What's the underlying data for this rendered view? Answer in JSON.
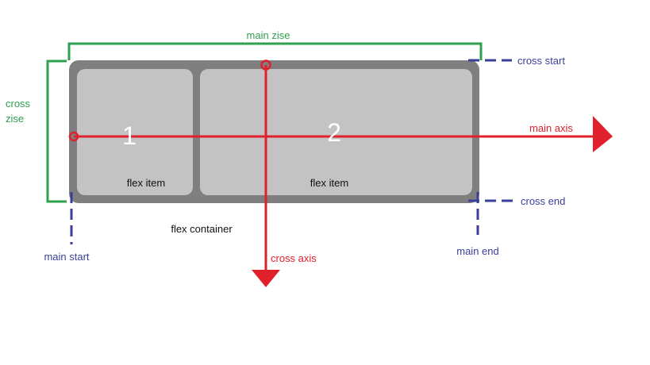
{
  "diagram": {
    "main_size_label": "main zise",
    "cross_size_label_line1": "cross",
    "cross_size_label_line2": "zise",
    "cross_start_label": "cross start",
    "cross_end_label": "cross end",
    "main_start_label": "main start",
    "main_end_label": "main end",
    "main_axis_label": "main axis",
    "cross_axis_label": "cross axis",
    "flex_container_label": "flex container",
    "items": [
      {
        "number": "1",
        "label": "flex item"
      },
      {
        "number": "2",
        "label": "flex item"
      }
    ],
    "colors": {
      "size_lines": "#2ea04f",
      "edge_markers": "#3a3f9a",
      "axes": "#e0202a",
      "container": "#7f7f7f",
      "item": "#c3c3c3"
    }
  }
}
